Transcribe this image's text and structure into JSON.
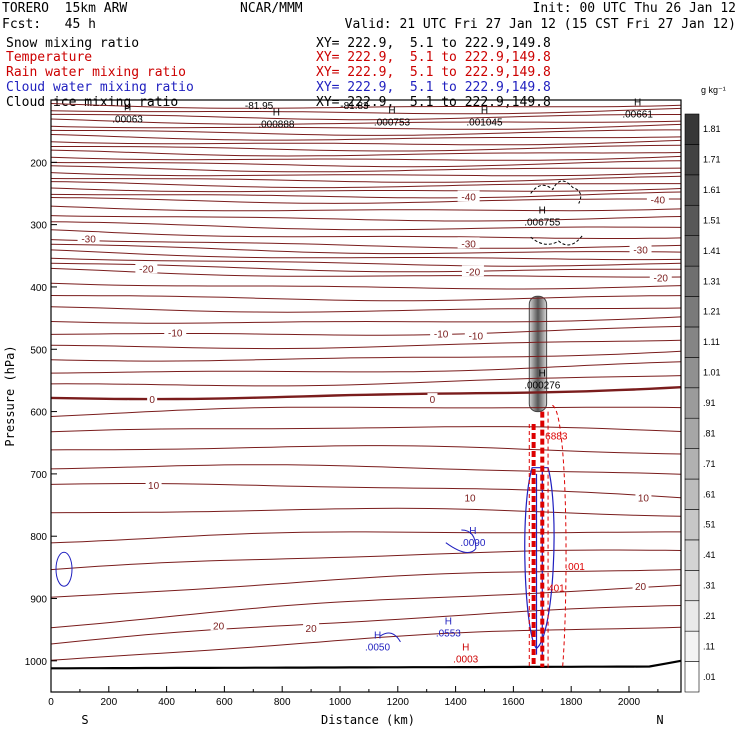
{
  "header": {
    "model": "TORERO  15km ARW",
    "org": "NCAR/MMM",
    "init": "Init: 00 UTC Thu 26 Jan 12",
    "fcst": "Fcst:   45 h",
    "valid": "Valid: 21 UTC Fri 27 Jan 12 (15 CST Fri 27 Jan 12)"
  },
  "fields": [
    {
      "name": "Snow mixing ratio",
      "xy": "XY= 222.9,  5.1 to 222.9,149.8",
      "color": "#000000"
    },
    {
      "name": "Temperature",
      "xy": "XY= 222.9,  5.1 to 222.9,149.8",
      "color": "#cc0000"
    },
    {
      "name": "Rain water mixing ratio",
      "xy": "XY= 222.9,  5.1 to 222.9,149.8",
      "color": "#cc0000"
    },
    {
      "name": "Cloud water mixing ratio",
      "xy": "XY= 222.9,  5.1 to 222.9,149.8",
      "color": "#1f1fbf"
    },
    {
      "name": "Cloud ice mixing ratio",
      "xy": "XY= 222.9,  5.1 to 222.9,149.8",
      "color": "#000000"
    }
  ],
  "chart_data": {
    "type": "contour",
    "xlabel": "Distance (km)",
    "ylabel": "Pressure (hPa)",
    "xlim": [
      0,
      2180
    ],
    "ylim": [
      1050,
      100
    ],
    "x_ticks": [
      0,
      200,
      400,
      600,
      800,
      1000,
      1200,
      1400,
      1600,
      1800,
      2000
    ],
    "y_ticks": [
      200,
      300,
      400,
      500,
      600,
      700,
      800,
      900,
      1000
    ],
    "x_end_labels": {
      "left": "S",
      "right": "N"
    },
    "colorbar": {
      "unit": "g kg⁻¹",
      "levels": [
        ".01",
        ".11",
        ".21",
        ".31",
        ".41",
        ".51",
        ".61",
        ".71",
        ".81",
        ".91",
        "1.01",
        "1.11",
        "1.21",
        "1.31",
        "1.41",
        "1.51",
        "1.61",
        "1.71",
        "1.81"
      ]
    },
    "temperature_labels": [
      {
        "text": "-40",
        "x": 1445,
        "p": 255
      },
      {
        "text": "-40",
        "x": 2100,
        "p": 260
      },
      {
        "text": "-30",
        "x": 130,
        "p": 322
      },
      {
        "text": "-30",
        "x": 1445,
        "p": 330
      },
      {
        "text": "-30",
        "x": 2040,
        "p": 340
      },
      {
        "text": "-20",
        "x": 330,
        "p": 370
      },
      {
        "text": "-20",
        "x": 1460,
        "p": 375
      },
      {
        "text": "-20",
        "x": 2110,
        "p": 385
      },
      {
        "text": "-10",
        "x": 430,
        "p": 473
      },
      {
        "text": "-10",
        "x": 1350,
        "p": 475
      },
      {
        "text": "-10",
        "x": 1470,
        "p": 478
      },
      {
        "text": "0",
        "x": 350,
        "p": 580
      },
      {
        "text": "0",
        "x": 1320,
        "p": 580
      },
      {
        "text": "10",
        "x": 355,
        "p": 718
      },
      {
        "text": "10",
        "x": 1450,
        "p": 738
      },
      {
        "text": "10",
        "x": 2050,
        "p": 738
      },
      {
        "text": "20",
        "x": 580,
        "p": 943
      },
      {
        "text": "20",
        "x": 900,
        "p": 947
      },
      {
        "text": "20",
        "x": 2040,
        "p": 880
      }
    ],
    "temperature_isotherms": [
      {
        "value": -40,
        "p_left": 258,
        "p_right": 258
      },
      {
        "value": -30,
        "p_left": 322,
        "p_right": 335
      },
      {
        "value": -20,
        "p_left": 372,
        "p_right": 382
      },
      {
        "value": -10,
        "p_left": 475,
        "p_right": 465
      },
      {
        "value": 0,
        "p_left": 578,
        "p_right": 560
      },
      {
        "value": 10,
        "p_left": 718,
        "p_right": 738
      },
      {
        "value": 20,
        "p_left": 945,
        "p_right": 880
      }
    ],
    "maxima": [
      {
        "marker": "H",
        "value": ".00063",
        "x": 265,
        "p": 120,
        "color": "#000000"
      },
      {
        "marker": "H",
        "value": ".000888",
        "x": 780,
        "p": 128,
        "color": "#000000"
      },
      {
        "marker": "H",
        "value": ".000753",
        "x": 1180,
        "p": 125,
        "color": "#000000"
      },
      {
        "marker": "H",
        "value": ".001045",
        "x": 1500,
        "p": 125,
        "color": "#000000"
      },
      {
        "marker": "H",
        "value": ".00661",
        "x": 2030,
        "p": 112,
        "color": "#000000"
      },
      {
        "marker": "H",
        "value": ".006755",
        "x": 1700,
        "p": 285,
        "color": "#000000"
      },
      {
        "marker": "H",
        "value": ".000276",
        "x": 1700,
        "p": 547,
        "color": "#000000"
      },
      {
        "marker": "H",
        "value": ".0090",
        "x": 1460,
        "p": 800,
        "color": "#1f1fbf"
      },
      {
        "marker": "H",
        "value": ".0050",
        "x": 1130,
        "p": 967,
        "color": "#1f1fbf"
      },
      {
        "marker": "H",
        "value": ".0553",
        "x": 1375,
        "p": 945,
        "color": "#1f1fbf"
      },
      {
        "marker": "H",
        "value": ".0003",
        "x": 1435,
        "p": 987,
        "color": "#cc0000"
      }
    ],
    "upper_labels": [
      {
        "text": "-81.95",
        "x": 720,
        "p": 108
      },
      {
        "text": "-81.83",
        "x": 1050,
        "p": 108
      }
    ],
    "rain_labels": [
      {
        "text": ".001",
        "x": 1780,
        "p": 848
      },
      {
        "text": "401",
        "x": 1720,
        "p": 882
      },
      {
        "text": "6883",
        "x": 1710,
        "p": 638
      }
    ]
  }
}
